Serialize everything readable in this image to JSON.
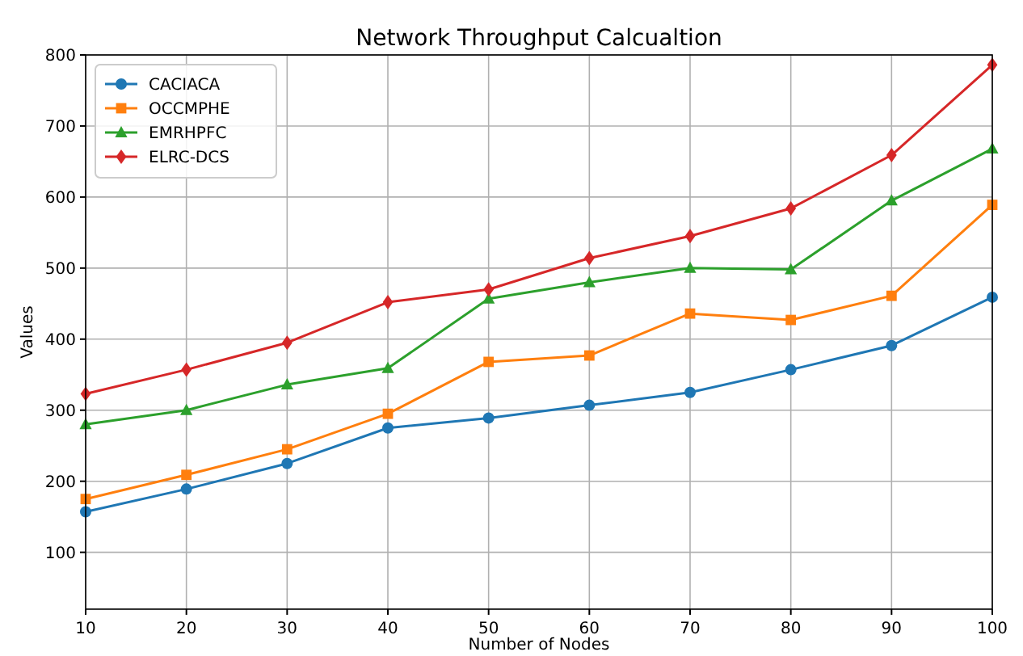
{
  "chart_data": {
    "type": "line",
    "title": "Network Throughput Calcualtion",
    "xlabel": "Number of Nodes",
    "ylabel": "Values",
    "x": [
      10,
      20,
      30,
      40,
      50,
      60,
      70,
      80,
      90,
      100
    ],
    "series": [
      {
        "name": "CACIACA",
        "color": "#1f77b4",
        "marker": "circle",
        "values": [
          157,
          189,
          225,
          275,
          289,
          307,
          325,
          357,
          391,
          459
        ]
      },
      {
        "name": "OCCMPHE",
        "color": "#ff7f0e",
        "marker": "square",
        "values": [
          175,
          209,
          245,
          295,
          368,
          377,
          436,
          427,
          461,
          589
        ]
      },
      {
        "name": "EMRHPFC",
        "color": "#2ca02c",
        "marker": "triangle",
        "values": [
          280,
          300,
          336,
          359,
          457,
          480,
          500,
          498,
          595,
          668
        ]
      },
      {
        "name": "ELRC-DCS",
        "color": "#d62728",
        "marker": "diamond",
        "values": [
          323,
          357,
          395,
          452,
          470,
          514,
          545,
          584,
          659,
          786
        ]
      }
    ],
    "xlim": [
      10,
      100
    ],
    "ylim": [
      20,
      800
    ],
    "xticks": [
      10,
      20,
      30,
      40,
      50,
      60,
      70,
      80,
      90,
      100
    ],
    "yticks": [
      100,
      200,
      300,
      400,
      500,
      600,
      700,
      800
    ],
    "grid": true,
    "legend": "top left"
  }
}
